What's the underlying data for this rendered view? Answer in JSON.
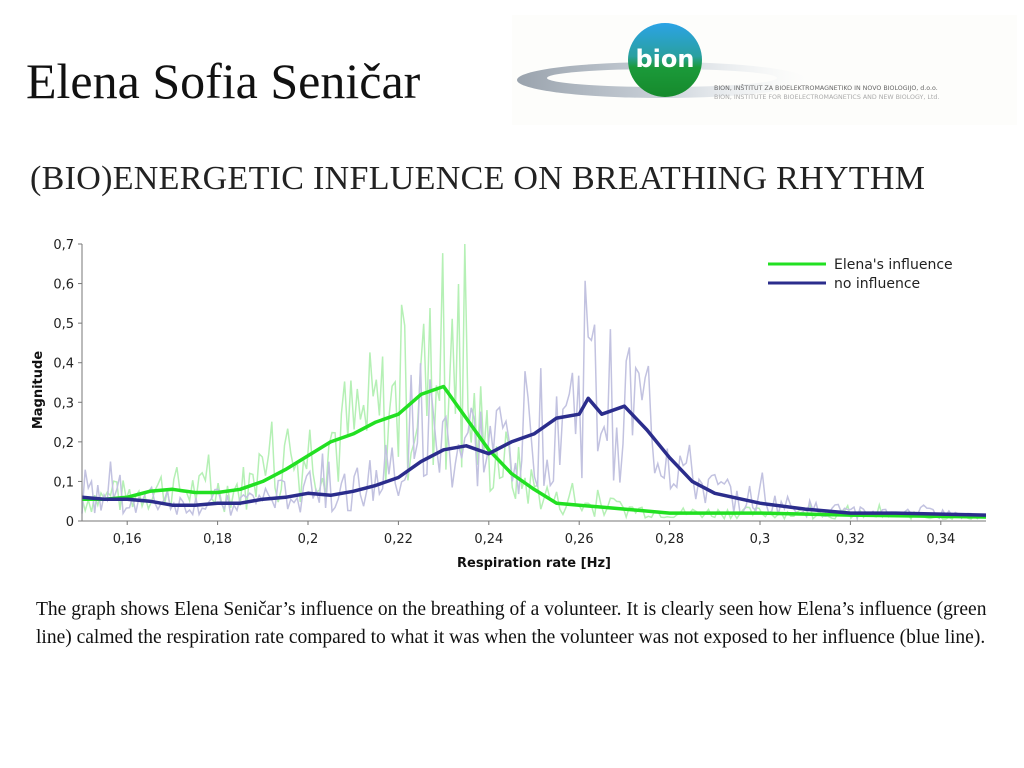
{
  "slide": {
    "title": "Elena Sofia Seničar",
    "subtitle": "(BIO)ENERGETIC INFLUENCE ON BREATHING RHYTHM",
    "caption": "The graph shows Elena Seničar’s influence on the breathing of a volunteer. It is clearly seen how Elena’s influence (green line) calmed the respiration rate compared to what it was when the volunteer was not exposed to her influence (blue line)."
  },
  "logo": {
    "mark": "bion",
    "line1": "BION, INŠTITUT ZA BIOELEKTROMAGNETIKO IN NOVO BIOLOGIJO, d.o.o.",
    "line2": "BION, INSTITUTE FOR BIOELECTROMAGNETICS AND NEW BIOLOGY, Ltd."
  },
  "colors": {
    "green": "#22e022",
    "blue": "#2b2d8c",
    "green_raw": "#b5f0b5",
    "blue_raw": "#c2c2e0"
  },
  "chart_data": {
    "type": "line",
    "title": "",
    "xlabel": "Respiration rate [Hz]",
    "ylabel": "Magnitude",
    "xlim": [
      0.15,
      0.35
    ],
    "ylim": [
      0,
      0.7
    ],
    "xticks": [
      0.16,
      0.18,
      0.2,
      0.22,
      0.24,
      0.26,
      0.28,
      0.3,
      0.32,
      0.34
    ],
    "xtick_labels": [
      "0,16",
      "0,18",
      "0,2",
      "0,22",
      "0,24",
      "0,26",
      "0,28",
      "0,3",
      "0,32",
      "0,34"
    ],
    "yticks": [
      0,
      0.1,
      0.2,
      0.3,
      0.4,
      0.5,
      0.6,
      0.7
    ],
    "ytick_labels": [
      "0",
      "0,1",
      "0,2",
      "0,3",
      "0,4",
      "0,5",
      "0,6",
      "0,7"
    ],
    "grid": false,
    "legend_position": "top-right",
    "series": [
      {
        "name": "Elena's influence",
        "color": "#22e022",
        "x": [
          0.15,
          0.155,
          0.16,
          0.165,
          0.17,
          0.175,
          0.18,
          0.185,
          0.19,
          0.195,
          0.2,
          0.205,
          0.21,
          0.215,
          0.22,
          0.225,
          0.23,
          0.235,
          0.24,
          0.245,
          0.25,
          0.255,
          0.26,
          0.265,
          0.27,
          0.28,
          0.29,
          0.3,
          0.32,
          0.35
        ],
        "y": [
          0.055,
          0.055,
          0.06,
          0.075,
          0.08,
          0.072,
          0.072,
          0.08,
          0.1,
          0.13,
          0.165,
          0.2,
          0.22,
          0.25,
          0.27,
          0.32,
          0.34,
          0.26,
          0.18,
          0.12,
          0.08,
          0.045,
          0.04,
          0.035,
          0.03,
          0.02,
          0.02,
          0.02,
          0.015,
          0.01
        ]
      },
      {
        "name": "no influence",
        "color": "#2b2d8c",
        "x": [
          0.15,
          0.155,
          0.16,
          0.165,
          0.17,
          0.175,
          0.18,
          0.185,
          0.19,
          0.195,
          0.2,
          0.205,
          0.21,
          0.215,
          0.22,
          0.225,
          0.23,
          0.235,
          0.24,
          0.245,
          0.25,
          0.255,
          0.26,
          0.262,
          0.265,
          0.27,
          0.275,
          0.28,
          0.285,
          0.29,
          0.3,
          0.31,
          0.32,
          0.33,
          0.35
        ],
        "y": [
          0.06,
          0.055,
          0.055,
          0.05,
          0.04,
          0.04,
          0.045,
          0.045,
          0.055,
          0.06,
          0.07,
          0.065,
          0.075,
          0.09,
          0.11,
          0.15,
          0.18,
          0.19,
          0.17,
          0.2,
          0.22,
          0.26,
          0.27,
          0.31,
          0.27,
          0.29,
          0.23,
          0.16,
          0.1,
          0.07,
          0.045,
          0.03,
          0.02,
          0.02,
          0.015
        ]
      }
    ]
  }
}
